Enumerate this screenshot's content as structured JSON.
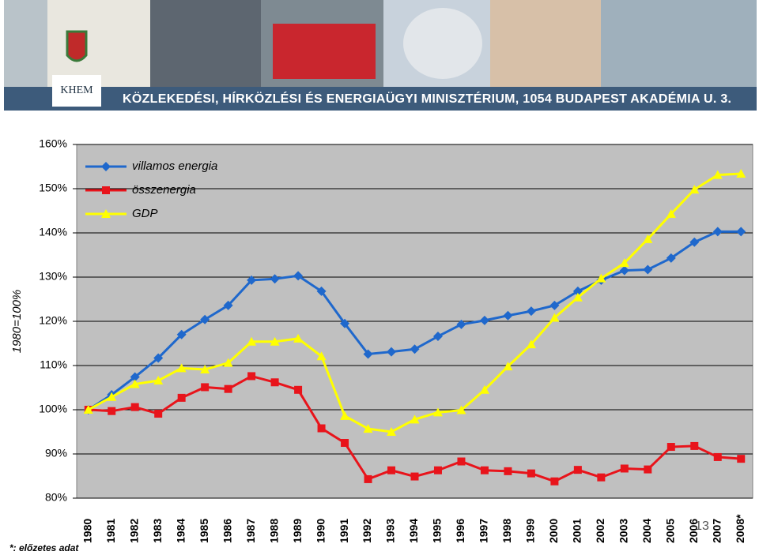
{
  "header": {
    "logo": "KHEM",
    "title": "KÖZLEKEDÉSI, HÍRKÖZLÉSI ÉS ENERGIAÜGYI MINISZTÉRIUM, 1054 BUDAPEST AKADÉMIA U. 3."
  },
  "chart_data": {
    "type": "line",
    "ylabel": "1980=100%",
    "footnote": "*: előzetes adat",
    "page_number": "13",
    "categories": [
      "1980",
      "1981",
      "1982",
      "1983",
      "1984",
      "1985",
      "1986",
      "1987",
      "1988",
      "1989",
      "1990",
      "1991",
      "1992",
      "1993",
      "1994",
      "1995",
      "1996",
      "1997",
      "1998",
      "1999",
      "2000",
      "2001",
      "2002",
      "2003",
      "2004",
      "2005",
      "2006",
      "2007",
      "2008*"
    ],
    "ylim": [
      80,
      160
    ],
    "yticks": [
      {
        "value": 80,
        "label": "80%"
      },
      {
        "value": 90,
        "label": "90%"
      },
      {
        "value": 100,
        "label": "100%"
      },
      {
        "value": 110,
        "label": "110%"
      },
      {
        "value": 120,
        "label": "120%"
      },
      {
        "value": 130,
        "label": "130%"
      },
      {
        "value": 140,
        "label": "140%"
      },
      {
        "value": 150,
        "label": "150%"
      },
      {
        "value": 160,
        "label": "160%"
      }
    ],
    "grid": true,
    "legend": "upper left",
    "series": [
      {
        "name": "villamos energia",
        "color": "#1f68cc",
        "marker": "diamond",
        "values": [
          100,
          103.4,
          107.4,
          111.7,
          117,
          120.4,
          123.6,
          129.3,
          129.6,
          130.3,
          126.8,
          119.5,
          112.6,
          113.1,
          113.7,
          116.6,
          119.3,
          120.2,
          121.3,
          122.3,
          123.6,
          126.8,
          129.3,
          131.5,
          131.7,
          134.3,
          137.9,
          140.3,
          140.3
        ]
      },
      {
        "name": "összenergia",
        "color": "#e8141b",
        "marker": "square",
        "values": [
          100,
          99.7,
          100.6,
          99.1,
          102.7,
          105.1,
          104.7,
          107.6,
          106.2,
          104.5,
          95.8,
          92.5,
          84.3,
          86.3,
          84.9,
          86.3,
          88.3,
          86.3,
          86.1,
          85.6,
          83.8,
          86.4,
          84.7,
          86.7,
          86.5,
          91.6,
          91.8,
          89.3,
          88.9
        ]
      },
      {
        "name": "GDP",
        "color": "#ffff00",
        "marker": "triangle",
        "values": [
          100,
          102.9,
          105.8,
          106.6,
          109.4,
          109.1,
          110.6,
          115.4,
          115.4,
          116.1,
          112.1,
          98.6,
          95.7,
          95,
          97.8,
          99.4,
          99.9,
          104.5,
          109.8,
          114.8,
          120.8,
          125.4,
          129.7,
          133.2,
          138.6,
          144.3,
          149.8,
          153.1,
          153.4
        ]
      }
    ]
  }
}
